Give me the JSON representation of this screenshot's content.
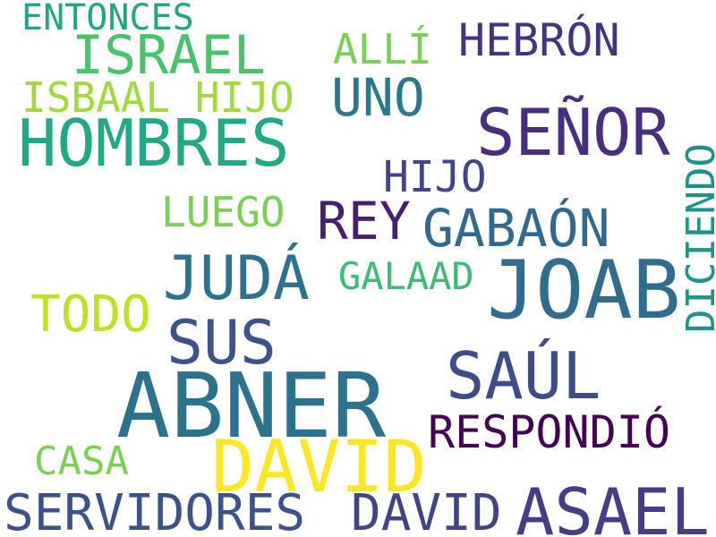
{
  "words": [
    {
      "key": "entonces",
      "text": "ENTONCES",
      "color": "#21a685"
    },
    {
      "key": "israel",
      "text": "ISRAEL",
      "color": "#4ac16d"
    },
    {
      "key": "alli",
      "text": "ALLÍ",
      "color": "#7ad151"
    },
    {
      "key": "hebron",
      "text": "HEBRÓN",
      "color": "#46337e"
    },
    {
      "key": "isbaal",
      "text": "ISBAAL HIJO",
      "color": "#a0da39"
    },
    {
      "key": "uno",
      "text": "UNO",
      "color": "#2a788e"
    },
    {
      "key": "hombres",
      "text": "HOMBRES",
      "color": "#22a884"
    },
    {
      "key": "senor",
      "text": "SEÑOR",
      "color": "#472f7d"
    },
    {
      "key": "hijo2",
      "text": "HIJO",
      "color": "#414487"
    },
    {
      "key": "luego",
      "text": "LUEGO",
      "color": "#7ad151"
    },
    {
      "key": "rey",
      "text": "REY",
      "color": "#481f70"
    },
    {
      "key": "gabaon",
      "text": "GABAÓN",
      "color": "#31688e"
    },
    {
      "key": "juda",
      "text": "JUDÁ",
      "color": "#2c728e"
    },
    {
      "key": "galaad",
      "text": "GALAAD",
      "color": "#3bbb75"
    },
    {
      "key": "joab",
      "text": "JOAB",
      "color": "#2f6c8e"
    },
    {
      "key": "diciendo",
      "text": "DICIENDO",
      "color": "#21918c"
    },
    {
      "key": "todo",
      "text": "TODO",
      "color": "#c2df23"
    },
    {
      "key": "sus",
      "text": "SUS",
      "color": "#3b528b"
    },
    {
      "key": "saul",
      "text": "SAÚL",
      "color": "#3e4c8a"
    },
    {
      "key": "abner",
      "text": "ABNER",
      "color": "#2c728e"
    },
    {
      "key": "respondio",
      "text": "RESPONDIÓ",
      "color": "#440154"
    },
    {
      "key": "casa",
      "text": "CASA",
      "color": "#7ad151"
    },
    {
      "key": "david_big",
      "text": "DAVID",
      "color": "#fde725"
    },
    {
      "key": "servidores",
      "text": "SERVIDORES",
      "color": "#3b528b"
    },
    {
      "key": "david_small",
      "text": "DAVID",
      "color": "#414487"
    },
    {
      "key": "asael",
      "text": "ASAEL",
      "color": "#433e85"
    }
  ]
}
